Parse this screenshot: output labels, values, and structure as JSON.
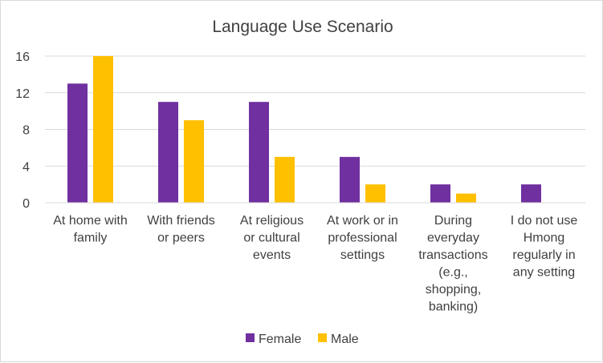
{
  "chart_data": {
    "type": "bar",
    "title": "Language Use Scenario",
    "xlabel": "",
    "ylabel": "",
    "ylim": [
      0,
      16
    ],
    "yticks": [
      0,
      4,
      8,
      12,
      16
    ],
    "grid": true,
    "legend_position": "bottom",
    "categories": [
      [
        "At home with",
        "family"
      ],
      [
        "With friends",
        "or peers"
      ],
      [
        "At religious",
        "or cultural",
        "events"
      ],
      [
        "At work or in",
        "professional",
        "settings"
      ],
      [
        "During",
        "everyday",
        "transactions",
        "(e.g.,",
        "shopping,",
        "banking)"
      ],
      [
        "I do not use",
        "Hmong",
        "regularly in",
        "any setting"
      ]
    ],
    "series": [
      {
        "name": "Female",
        "color": "#7030a0",
        "values": [
          13,
          11,
          11,
          5,
          2,
          2
        ]
      },
      {
        "name": "Male",
        "color": "#ffc000",
        "values": [
          16,
          9,
          5,
          2,
          1,
          0
        ]
      }
    ]
  }
}
